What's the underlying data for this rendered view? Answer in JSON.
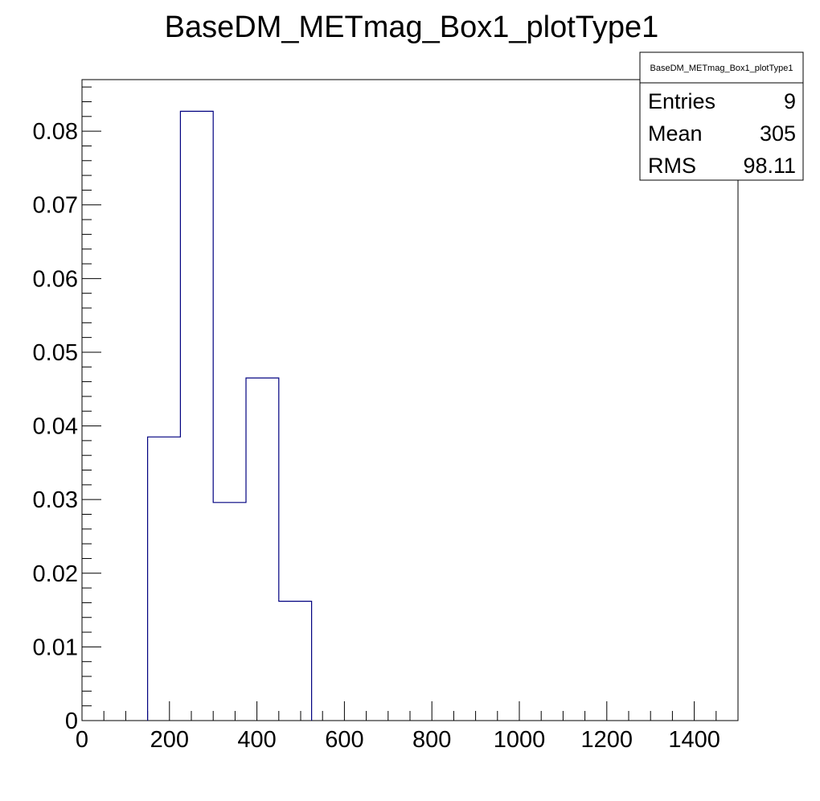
{
  "chart_data": {
    "type": "histogram",
    "title": "BaseDM_METmag_Box1_plotType1",
    "xlabel": "",
    "ylabel": "",
    "xlim": [
      0,
      1500
    ],
    "ylim": [
      0,
      0.087
    ],
    "x_ticks": [
      0,
      200,
      400,
      600,
      800,
      1000,
      1200,
      1400
    ],
    "x_tick_labels": [
      "0",
      "200",
      "400",
      "600",
      "800",
      "1000",
      "1200",
      "1400"
    ],
    "y_ticks": [
      0,
      0.01,
      0.02,
      0.03,
      0.04,
      0.05,
      0.06,
      0.07,
      0.08
    ],
    "y_tick_labels": [
      "0",
      "0.01",
      "0.02",
      "0.03",
      "0.04",
      "0.05",
      "0.06",
      "0.07",
      "0.08"
    ],
    "bin_edges": [
      150,
      225,
      300,
      375,
      450,
      525
    ],
    "values": [
      0.0385,
      0.0827,
      0.0296,
      0.0465,
      0.0162
    ],
    "line_color": "#000080",
    "grid": false
  },
  "stats_box": {
    "header": "BaseDM_METmag_Box1_plotType1",
    "rows": [
      {
        "label": "Entries",
        "value": "9"
      },
      {
        "label": "Mean",
        "value": "305"
      },
      {
        "label": "RMS",
        "value": "98.11"
      }
    ]
  }
}
